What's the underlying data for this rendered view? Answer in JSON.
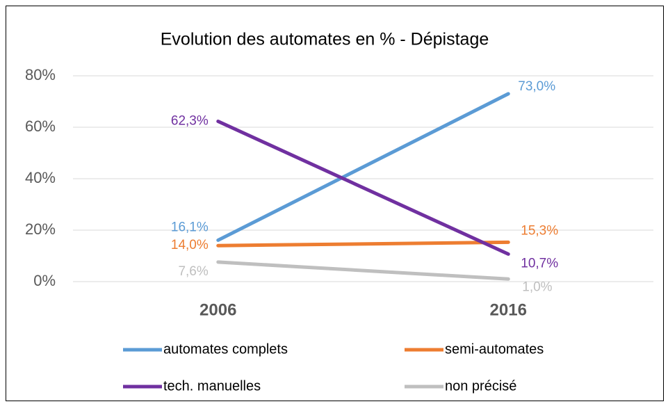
{
  "chart_data": {
    "type": "line",
    "title": "Evolution des automates en % - Dépistage",
    "categories": [
      "2006",
      "2016"
    ],
    "series": [
      {
        "name": "automates complets",
        "color": "#5b9bd5",
        "values": [
          16.1,
          73.0
        ],
        "value_labels": [
          "16,1%",
          "73,0%"
        ]
      },
      {
        "name": "semi-automates",
        "color": "#ed7d31",
        "values": [
          14.0,
          15.3
        ],
        "value_labels": [
          "14,0%",
          "15,3%"
        ]
      },
      {
        "name": "tech. manuelles",
        "color": "#7030a0",
        "values": [
          62.3,
          10.7
        ],
        "value_labels": [
          "62,3%",
          "10,7%"
        ]
      },
      {
        "name": "non précisé",
        "color": "#bfbfbf",
        "values": [
          7.6,
          1.0
        ],
        "value_labels": [
          "7,6%",
          "1,0%"
        ]
      }
    ],
    "ylim": [
      0,
      80
    ],
    "yticks": [
      {
        "value": 0,
        "label": "0%"
      },
      {
        "value": 20,
        "label": "20%"
      },
      {
        "value": 40,
        "label": "40%"
      },
      {
        "value": 60,
        "label": "60%"
      },
      {
        "value": 80,
        "label": "80%"
      }
    ],
    "grid": true,
    "legend": "bottom"
  }
}
